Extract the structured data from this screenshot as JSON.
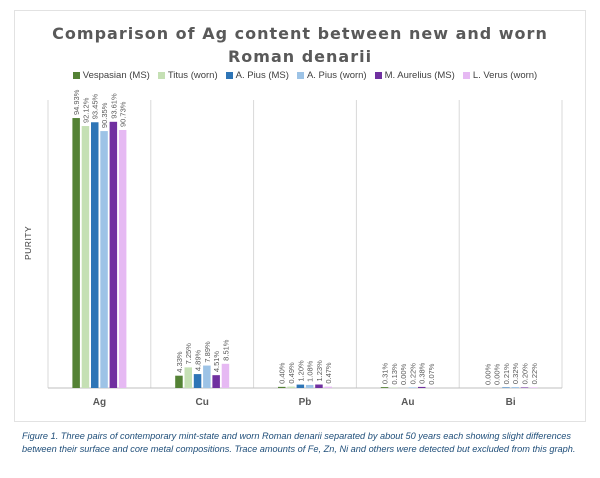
{
  "chart_data": {
    "type": "bar",
    "title": "Comparison of Ag content between new and worn Roman denarii",
    "ylabel": "PURITY",
    "xlabel": "",
    "ylim": [
      0,
      100
    ],
    "grid": false,
    "legend_position": "top",
    "categories": [
      "Ag",
      "Cu",
      "Pb",
      "Au",
      "Bi"
    ],
    "series": [
      {
        "name": "Vespasian (MS)",
        "color": "#548235",
        "values": [
          94.93,
          4.33,
          0.4,
          0.31,
          0.0
        ],
        "labels": [
          "94.93%",
          "4.33%",
          "0.40%",
          "0.31%",
          "0.00%"
        ]
      },
      {
        "name": "Titus (worn)",
        "color": "#c5e0b4",
        "values": [
          92.12,
          7.25,
          0.49,
          0.13,
          0.0
        ],
        "labels": [
          "92.12%",
          "7.25%",
          "0.49%",
          "0.13%",
          "0.00%"
        ]
      },
      {
        "name": "A. Pius (MS)",
        "color": "#2e75b6",
        "values": [
          93.45,
          4.89,
          1.2,
          0.0,
          0.21
        ],
        "labels": [
          "93.45%",
          "4.89%",
          "1.20%",
          "0.00%",
          "0.21%"
        ]
      },
      {
        "name": "A. Pius (worn)",
        "color": "#9dc3e6",
        "values": [
          90.35,
          7.89,
          1.08,
          0.22,
          0.32
        ],
        "labels": [
          "90.35%",
          "7.89%",
          "1.08%",
          "0.22%",
          "0.32%"
        ]
      },
      {
        "name": "M. Aurelius (MS)",
        "color": "#7030a0",
        "values": [
          93.61,
          4.51,
          1.23,
          0.38,
          0.2
        ],
        "labels": [
          "93.61%",
          "4.51%",
          "1.23%",
          "0.38%",
          "0.20%"
        ]
      },
      {
        "name": "L. Verus (worn)",
        "color": "#e6b9f3",
        "values": [
          90.73,
          8.51,
          0.47,
          0.07,
          0.22
        ],
        "labels": [
          "90.73%",
          "8.51%",
          "0.47%",
          "0.07%",
          "0.22%"
        ]
      }
    ]
  },
  "caption": "Figure 1. Three pairs of contemporary mint-state and worn Roman denarii separated by about 50 years each showing slight differences between their surface and core metal compositions. Trace amounts of Fe, Zn, Ni and others were detected but excluded from this graph."
}
